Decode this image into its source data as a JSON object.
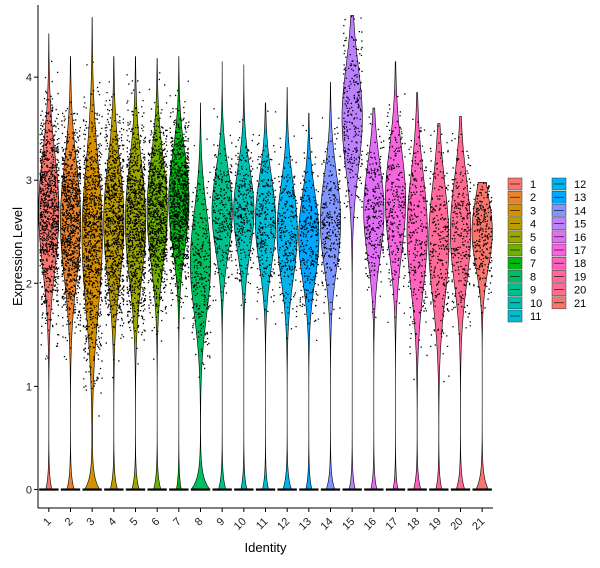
{
  "chart_data": {
    "type": "violin",
    "xlabel": "Identity",
    "ylabel": "Expression Level",
    "ylim": [
      -0.18,
      4.7
    ],
    "y_ticks": [
      0,
      1,
      2,
      3,
      4
    ],
    "categories": [
      "1",
      "2",
      "3",
      "4",
      "5",
      "6",
      "7",
      "8",
      "9",
      "10",
      "11",
      "12",
      "13",
      "14",
      "15",
      "16",
      "17",
      "18",
      "19",
      "20",
      "21"
    ],
    "colors": [
      "#F8766D",
      "#E9842C",
      "#D69100",
      "#BC9D00",
      "#9CA700",
      "#6FB000",
      "#00B813",
      "#00BD61",
      "#00C08E",
      "#00C0B4",
      "#00BDD4",
      "#00B5EE",
      "#00A7FF",
      "#7F96FF",
      "#BC81FF",
      "#E26EF7",
      "#F863DF",
      "#FF62BF",
      "#FF6A9A",
      "#FF6C91",
      "#F8766D"
    ],
    "series_stats": [
      {
        "cluster": "1",
        "max": 4.42,
        "center": 2.7,
        "spread": 0.55,
        "zero_frac": 0.05
      },
      {
        "cluster": "2",
        "max": 4.2,
        "center": 2.6,
        "spread": 0.55,
        "zero_frac": 0.06
      },
      {
        "cluster": "3",
        "max": 4.58,
        "center": 2.45,
        "spread": 0.7,
        "zero_frac": 0.12
      },
      {
        "cluster": "4",
        "max": 4.2,
        "center": 2.6,
        "spread": 0.55,
        "zero_frac": 0.06
      },
      {
        "cluster": "5",
        "max": 4.2,
        "center": 2.6,
        "spread": 0.55,
        "zero_frac": 0.06
      },
      {
        "cluster": "6",
        "max": 4.18,
        "center": 2.7,
        "spread": 0.5,
        "zero_frac": 0.06
      },
      {
        "cluster": "7",
        "max": 4.2,
        "center": 2.8,
        "spread": 0.45,
        "zero_frac": 0.04
      },
      {
        "cluster": "8",
        "max": 3.75,
        "center": 2.2,
        "spread": 0.5,
        "zero_frac": 0.15
      },
      {
        "cluster": "9",
        "max": 4.15,
        "center": 2.7,
        "spread": 0.4,
        "zero_frac": 0.06
      },
      {
        "cluster": "10",
        "max": 4.12,
        "center": 2.7,
        "spread": 0.4,
        "zero_frac": 0.05
      },
      {
        "cluster": "11",
        "max": 3.75,
        "center": 2.6,
        "spread": 0.42,
        "zero_frac": 0.05
      },
      {
        "cluster": "12",
        "max": 3.9,
        "center": 2.5,
        "spread": 0.45,
        "zero_frac": 0.07
      },
      {
        "cluster": "13",
        "max": 3.65,
        "center": 2.45,
        "spread": 0.42,
        "zero_frac": 0.05
      },
      {
        "cluster": "14",
        "max": 3.95,
        "center": 2.6,
        "spread": 0.45,
        "zero_frac": 0.07
      },
      {
        "cluster": "15",
        "max": 4.6,
        "center": 3.6,
        "spread": 0.5,
        "zero_frac": 0.05
      },
      {
        "cluster": "16",
        "max": 3.7,
        "center": 2.7,
        "spread": 0.45,
        "zero_frac": 0.05
      },
      {
        "cluster": "17",
        "max": 4.15,
        "center": 2.8,
        "spread": 0.5,
        "zero_frac": 0.04
      },
      {
        "cluster": "18",
        "max": 3.85,
        "center": 2.5,
        "spread": 0.55,
        "zero_frac": 0.06
      },
      {
        "cluster": "19",
        "max": 3.55,
        "center": 2.4,
        "spread": 0.55,
        "zero_frac": 0.05
      },
      {
        "cluster": "20",
        "max": 3.62,
        "center": 2.5,
        "spread": 0.5,
        "zero_frac": 0.07
      },
      {
        "cluster": "21",
        "max": 2.98,
        "center": 2.5,
        "spread": 0.35,
        "zero_frac": 0.1
      }
    ],
    "grid": false,
    "legend": {
      "placement": "right",
      "columns": [
        [
          "1",
          "2",
          "3",
          "4",
          "5",
          "6",
          "7",
          "8",
          "9",
          "10",
          "11"
        ],
        [
          "12",
          "13",
          "14",
          "15",
          "16",
          "17",
          "18",
          "19",
          "20",
          "21"
        ]
      ]
    }
  }
}
